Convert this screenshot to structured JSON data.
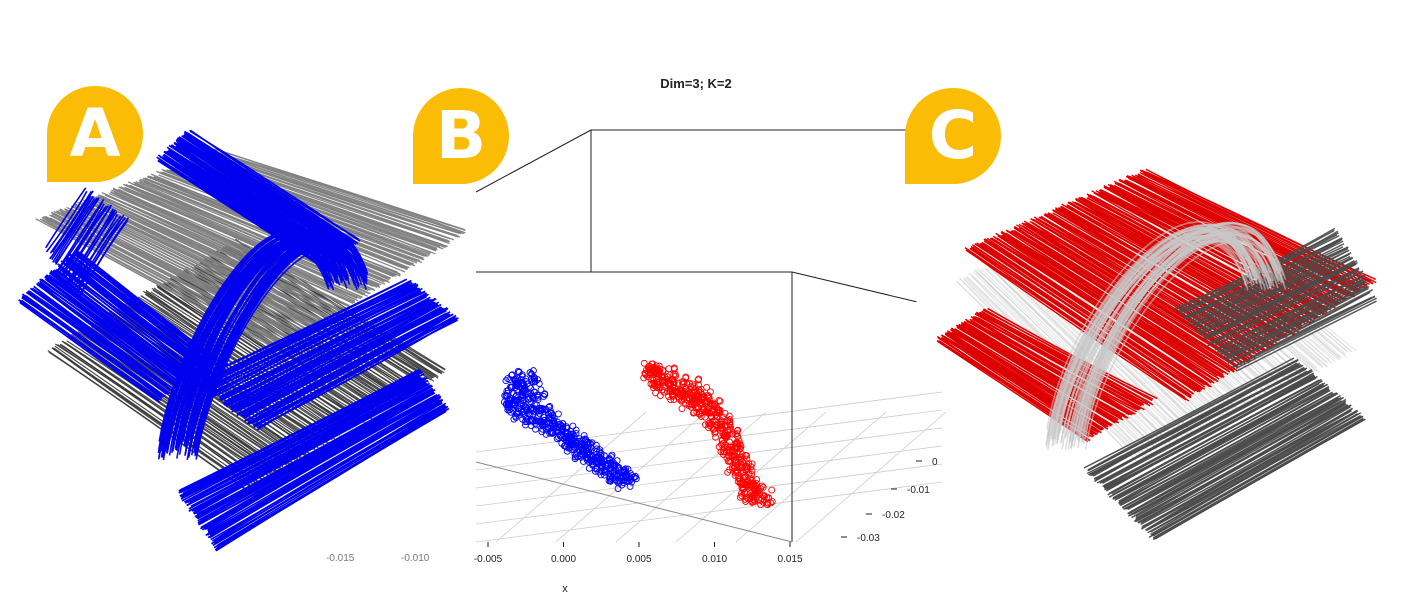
{
  "figure": {
    "panels": [
      {
        "letter": "A",
        "fiber_colors": [
          "#0000ee",
          "#808080",
          "#3a3a3a"
        ]
      },
      {
        "letter": "B",
        "fiber_colors": []
      },
      {
        "letter": "C",
        "fiber_colors": [
          "#dd0000",
          "#c8c8c8",
          "#4a4a4a"
        ]
      }
    ],
    "badge_color": "#fbbc05",
    "badge_letter_color": "#ffffff",
    "background_stray_ticks": [
      "-0.015",
      "-0.010"
    ]
  },
  "chart_data": {
    "type": "scatter",
    "title": "Dim=3; K=2",
    "xlabel": "x",
    "ylabel": "",
    "zlabel": "",
    "xlim": [
      -0.0065,
      0.015
    ],
    "ylim": [
      -0.033,
      0.002
    ],
    "x_ticks": [
      "-0.005",
      "0.000",
      "0.005",
      "0.010",
      "0.015"
    ],
    "y_ticks": [
      "0",
      "-0.01",
      "-0.02",
      "-0.03"
    ],
    "grid": true,
    "legend": "none",
    "series": [
      {
        "color": "#0000ff",
        "marker": "open-circle",
        "points": [
          [
            -0.0045,
            -0.005
          ],
          [
            -0.0043,
            -0.008
          ],
          [
            -0.004,
            -0.004
          ],
          [
            -0.004,
            -0.01
          ],
          [
            -0.0035,
            -0.012
          ],
          [
            -0.0032,
            -0.006
          ],
          [
            -0.003,
            -0.009
          ],
          [
            -0.0025,
            -0.013
          ],
          [
            -0.002,
            -0.012
          ],
          [
            -0.0015,
            -0.015
          ],
          [
            -0.001,
            -0.014
          ],
          [
            -0.0005,
            -0.016
          ],
          [
            0.0,
            -0.017
          ],
          [
            0.0005,
            -0.018
          ],
          [
            0.001,
            -0.019
          ],
          [
            0.0015,
            -0.02
          ],
          [
            0.002,
            -0.021
          ],
          [
            0.0025,
            -0.022
          ],
          [
            0.003,
            -0.023
          ],
          [
            0.0035,
            -0.024
          ],
          [
            0.004,
            -0.025
          ],
          [
            0.0045,
            -0.026
          ],
          [
            0.005,
            -0.027
          ],
          [
            0.0055,
            -0.028
          ]
        ]
      },
      {
        "color": "#ff0000",
        "marker": "open-circle",
        "points": [
          [
            0.004,
            -0.002
          ],
          [
            0.0045,
            -0.004
          ],
          [
            0.005,
            -0.003
          ],
          [
            0.0055,
            -0.006
          ],
          [
            0.006,
            -0.005
          ],
          [
            0.0065,
            -0.007
          ],
          [
            0.007,
            -0.006
          ],
          [
            0.0075,
            -0.009
          ],
          [
            0.008,
            -0.008
          ],
          [
            0.0085,
            -0.01
          ],
          [
            0.009,
            -0.011
          ],
          [
            0.0095,
            -0.013
          ],
          [
            0.01,
            -0.014
          ],
          [
            0.0105,
            -0.016
          ],
          [
            0.011,
            -0.018
          ],
          [
            0.0115,
            -0.02
          ],
          [
            0.012,
            -0.022
          ],
          [
            0.0125,
            -0.024
          ],
          [
            0.013,
            -0.026
          ],
          [
            0.0135,
            -0.028
          ],
          [
            0.014,
            -0.03
          ],
          [
            0.0145,
            -0.031
          ],
          [
            0.015,
            -0.032
          ]
        ]
      }
    ]
  }
}
